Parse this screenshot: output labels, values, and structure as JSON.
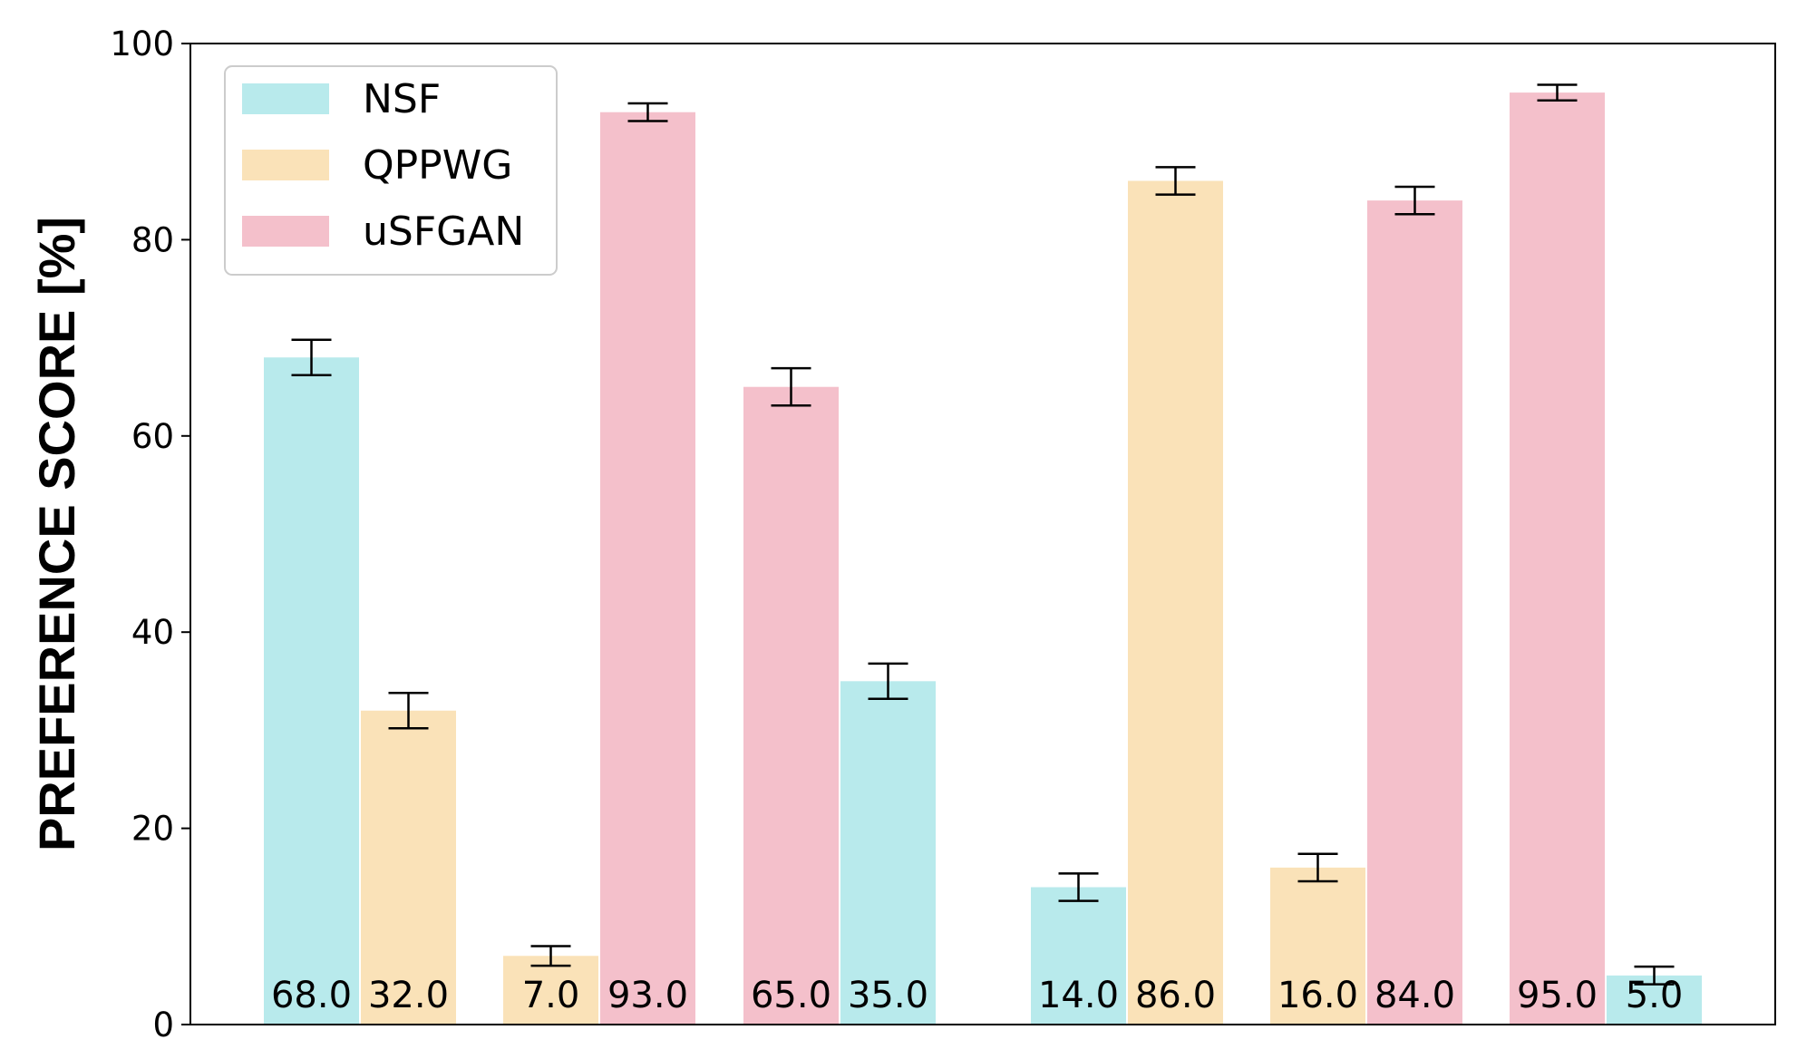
{
  "chart_data": {
    "type": "bar",
    "ylabel": "PREFERENCE SCORE [%]",
    "ylim": [
      0,
      100
    ],
    "yticks": [
      0,
      20,
      40,
      60,
      80,
      100
    ],
    "grid": false,
    "legend_position": "top-left",
    "series_colors": {
      "NSF": "#b8eaec",
      "QPPWG": "#fae2b8",
      "uSFGAN": "#f4c0cb"
    },
    "legend": [
      {
        "name": "NSF",
        "color": "#b8eaec"
      },
      {
        "name": "QPPWG",
        "color": "#fae2b8"
      },
      {
        "name": "uSFGAN",
        "color": "#f4c0cb"
      }
    ],
    "groups": [
      {
        "bars": [
          {
            "series": "NSF",
            "value": 68.0,
            "error": 1.8,
            "label": "68.0"
          },
          {
            "series": "QPPWG",
            "value": 32.0,
            "error": 1.8,
            "label": "32.0"
          }
        ]
      },
      {
        "bars": [
          {
            "series": "QPPWG",
            "value": 7.0,
            "error": 1.0,
            "label": "7.0"
          },
          {
            "series": "uSFGAN",
            "value": 93.0,
            "error": 0.9,
            "label": "93.0"
          }
        ]
      },
      {
        "bars": [
          {
            "series": "uSFGAN",
            "value": 65.0,
            "error": 1.9,
            "label": "65.0"
          },
          {
            "series": "NSF",
            "value": 35.0,
            "error": 1.8,
            "label": "35.0"
          }
        ]
      },
      {
        "bars": [
          {
            "series": "NSF",
            "value": 14.0,
            "error": 1.4,
            "label": "14.0"
          },
          {
            "series": "QPPWG",
            "value": 86.0,
            "error": 1.4,
            "label": "86.0"
          }
        ]
      },
      {
        "bars": [
          {
            "series": "QPPWG",
            "value": 16.0,
            "error": 1.4,
            "label": "16.0"
          },
          {
            "series": "uSFGAN",
            "value": 84.0,
            "error": 1.4,
            "label": "84.0"
          }
        ]
      },
      {
        "bars": [
          {
            "series": "uSFGAN",
            "value": 95.0,
            "error": 0.8,
            "label": "95.0"
          },
          {
            "series": "NSF",
            "value": 5.0,
            "error": 0.9,
            "label": "5.0"
          }
        ]
      }
    ]
  }
}
